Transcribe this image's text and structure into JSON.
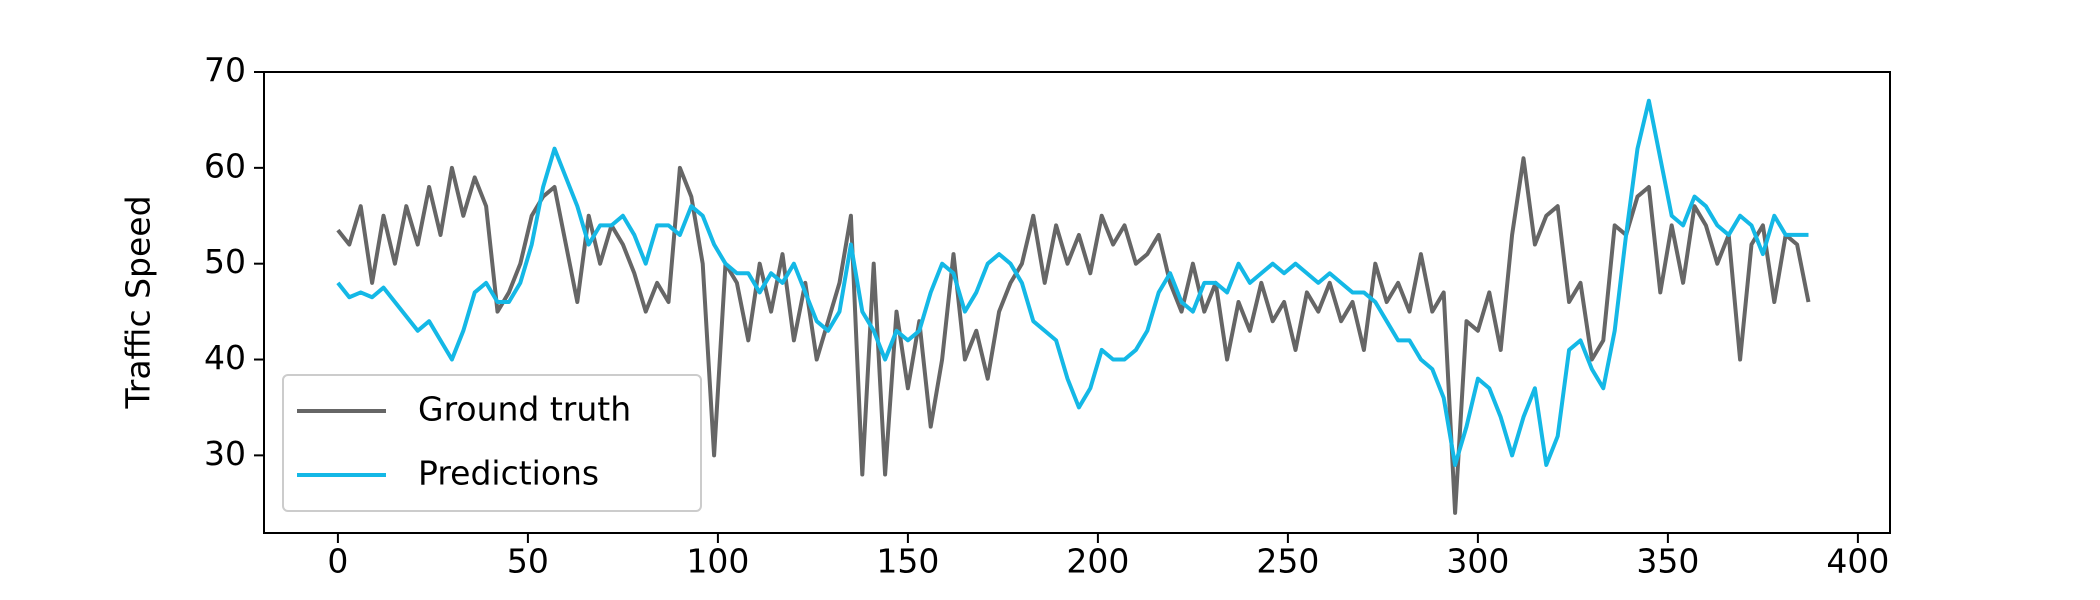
{
  "chart_data": {
    "type": "line",
    "ylabel": "Traffic Speed",
    "x": [
      0,
      3,
      6,
      9,
      12,
      15,
      18,
      21,
      24,
      27,
      30,
      33,
      36,
      39,
      42,
      45,
      48,
      51,
      54,
      57,
      60,
      63,
      66,
      69,
      72,
      75,
      78,
      81,
      84,
      87,
      90,
      93,
      96,
      99,
      102,
      105,
      108,
      111,
      114,
      117,
      120,
      123,
      126,
      129,
      132,
      135,
      138,
      141,
      144,
      147,
      150,
      153,
      156,
      159,
      162,
      165,
      168,
      171,
      174,
      177,
      180,
      183,
      186,
      189,
      192,
      195,
      198,
      201,
      204,
      207,
      210,
      213,
      216,
      219,
      222,
      225,
      228,
      231,
      234,
      237,
      240,
      243,
      246,
      249,
      252,
      255,
      258,
      261,
      264,
      267,
      270,
      273,
      276,
      279,
      282,
      285,
      288,
      291,
      294,
      297,
      300,
      303,
      306,
      309,
      312,
      315,
      318,
      321,
      324,
      327,
      330,
      333,
      336,
      339,
      342,
      345,
      348,
      351,
      354,
      357,
      360,
      363,
      366,
      369,
      372,
      375,
      378,
      381,
      384,
      387
    ],
    "series": [
      {
        "name": "Ground truth",
        "color": "#666666",
        "values": [
          53.5,
          52,
          56,
          48,
          55,
          50,
          56,
          52,
          58,
          53,
          60,
          55,
          59,
          56,
          45,
          47,
          50,
          55,
          57,
          58,
          52,
          46,
          55,
          50,
          54,
          52,
          49,
          45,
          48,
          46,
          60,
          57,
          50,
          30,
          50,
          48,
          42,
          50,
          45,
          51,
          42,
          48,
          40,
          44,
          48,
          55,
          28,
          50,
          28,
          45,
          37,
          44,
          33,
          40,
          51,
          40,
          43,
          38,
          45,
          48,
          50,
          55,
          48,
          54,
          50,
          53,
          49,
          55,
          52,
          54,
          50,
          51,
          53,
          48,
          45,
          50,
          45,
          48,
          40,
          46,
          43,
          48,
          44,
          46,
          41,
          47,
          45,
          48,
          44,
          46,
          41,
          50,
          46,
          48,
          45,
          51,
          45,
          47,
          24,
          44,
          43,
          47,
          41,
          53,
          61,
          52,
          55,
          56,
          46,
          48,
          40,
          42,
          54,
          53,
          57,
          58,
          47,
          54,
          48,
          56,
          54,
          50,
          53,
          40,
          52,
          54,
          46,
          53,
          52,
          46
        ]
      },
      {
        "name": "Predictions",
        "color": "#14b8e6",
        "values": [
          48,
          46.5,
          47,
          46.5,
          47.5,
          46,
          44.5,
          43,
          44,
          42,
          40,
          43,
          47,
          48,
          46,
          46,
          48,
          52,
          58,
          62,
          59,
          56,
          52,
          54,
          54,
          55,
          53,
          50,
          54,
          54,
          53,
          56,
          55,
          52,
          50,
          49,
          49,
          47,
          49,
          48,
          50,
          47,
          44,
          43,
          45,
          52,
          45,
          43,
          40,
          43,
          42,
          43,
          47,
          50,
          49,
          45,
          47,
          50,
          51,
          50,
          48,
          44,
          43,
          42,
          38,
          35,
          37,
          41,
          40,
          40,
          41,
          43,
          47,
          49,
          46,
          45,
          48,
          48,
          47,
          50,
          48,
          49,
          50,
          49,
          50,
          49,
          48,
          49,
          48,
          47,
          47,
          46,
          44,
          42,
          42,
          40,
          39,
          36,
          29,
          33,
          38,
          37,
          34,
          30,
          34,
          37,
          29,
          32,
          41,
          42,
          39,
          37,
          43,
          53,
          62,
          67,
          61,
          55,
          54,
          57,
          56,
          54,
          53,
          55,
          54,
          51,
          55,
          53,
          53,
          53
        ]
      }
    ],
    "xlim": [
      -19.45,
      408.45
    ],
    "ylim": [
      21.9,
      70
    ],
    "xticks": [
      0,
      50,
      100,
      150,
      200,
      250,
      300,
      350,
      400
    ],
    "yticks": [
      30,
      40,
      50,
      60,
      70
    ],
    "legend": "lower left"
  }
}
